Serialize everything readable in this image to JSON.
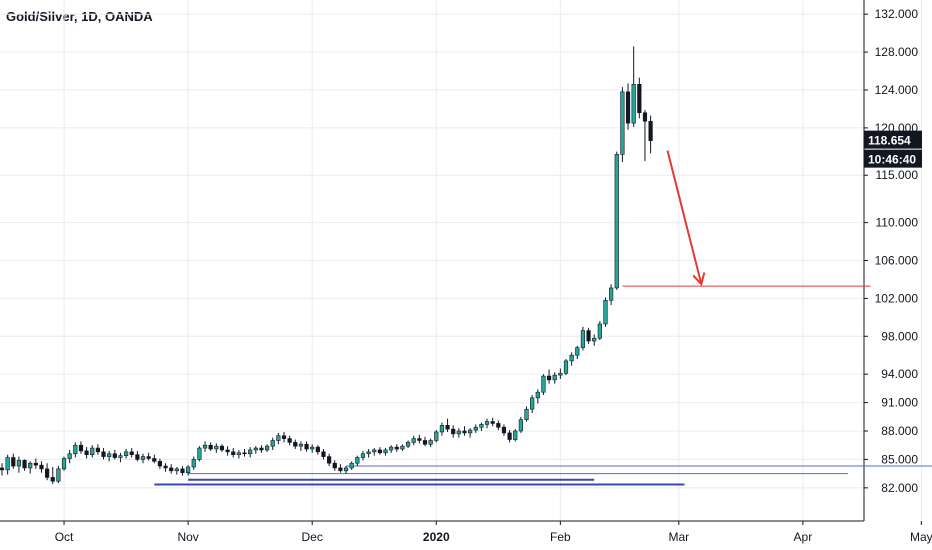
{
  "header": {
    "symbol_title": "Gold/Silver, 1D, OANDA"
  },
  "colors": {
    "up": "#26a69a",
    "down": "#131722",
    "wick": "#131722",
    "grid": "#e8ebf0",
    "axis_text": "#131722",
    "red_line": "#e53935",
    "blue_line": "#3949ab",
    "blue_line_light": "#5c6bc0",
    "price_badge_bg": "#131722",
    "price_badge_text": "#ffffff"
  },
  "chart_data": {
    "type": "candlestick",
    "title": "Gold/Silver, 1D, OANDA",
    "ylim": [
      78.5,
      133.5
    ],
    "y_ticks": [
      "132.000",
      "128.000",
      "124.000",
      "120.000",
      "115.000",
      "110.000",
      "106.000",
      "102.000",
      "98.000",
      "94.000",
      "91.000",
      "88.000",
      "85.000",
      "82.000"
    ],
    "x_ticks": [
      "Oct",
      "Nov",
      "Dec",
      "2020",
      "Feb",
      "Mar",
      "Apr",
      "May"
    ],
    "x_tick_bold": "2020",
    "last_price": "118.654",
    "countdown": "10:46:40",
    "candles": [
      [
        84.1,
        84.6,
        83.3,
        83.9
      ],
      [
        83.9,
        85.5,
        83.4,
        85.2
      ],
      [
        85.2,
        85.6,
        84.0,
        84.3
      ],
      [
        84.3,
        85.3,
        83.6,
        84.9
      ],
      [
        84.9,
        85.0,
        83.8,
        84.1
      ],
      [
        84.1,
        84.8,
        83.5,
        84.6
      ],
      [
        84.6,
        85.1,
        84.0,
        84.4
      ],
      [
        84.4,
        84.8,
        83.6,
        84.0
      ],
      [
        84.0,
        84.6,
        82.8,
        83.1
      ],
      [
        83.1,
        84.2,
        82.4,
        82.7
      ],
      [
        82.7,
        84.3,
        82.5,
        84.0
      ],
      [
        84.0,
        85.3,
        83.8,
        85.1
      ],
      [
        85.1,
        86.0,
        84.6,
        85.6
      ],
      [
        85.6,
        86.8,
        85.2,
        86.5
      ],
      [
        86.5,
        86.9,
        85.6,
        85.9
      ],
      [
        85.9,
        86.3,
        85.1,
        85.5
      ],
      [
        85.5,
        86.5,
        85.2,
        86.2
      ],
      [
        86.2,
        86.6,
        85.5,
        85.8
      ],
      [
        85.8,
        86.2,
        85.0,
        85.3
      ],
      [
        85.3,
        85.9,
        84.8,
        85.6
      ],
      [
        85.6,
        86.0,
        85.0,
        85.2
      ],
      [
        85.2,
        85.7,
        84.7,
        85.4
      ],
      [
        85.4,
        86.1,
        85.1,
        85.8
      ],
      [
        85.8,
        86.2,
        85.2,
        85.5
      ],
      [
        85.5,
        85.9,
        84.8,
        85.0
      ],
      [
        85.0,
        85.6,
        84.6,
        85.3
      ],
      [
        85.3,
        85.7,
        84.9,
        85.1
      ],
      [
        85.1,
        85.5,
        84.6,
        84.8
      ],
      [
        84.8,
        85.1,
        84.0,
        84.3
      ],
      [
        84.3,
        84.6,
        83.7,
        84.1
      ],
      [
        84.1,
        84.5,
        83.5,
        83.8
      ],
      [
        83.8,
        84.2,
        83.4,
        84.0
      ],
      [
        84.0,
        84.3,
        83.3,
        83.6
      ],
      [
        83.6,
        84.4,
        83.3,
        84.2
      ],
      [
        84.2,
        85.3,
        83.9,
        85.0
      ],
      [
        85.0,
        86.4,
        84.8,
        86.2
      ],
      [
        86.2,
        86.9,
        85.8,
        86.5
      ],
      [
        86.5,
        86.8,
        85.9,
        86.1
      ],
      [
        86.1,
        86.7,
        85.7,
        86.4
      ],
      [
        86.4,
        86.6,
        85.8,
        86.0
      ],
      [
        86.0,
        86.4,
        85.4,
        85.8
      ],
      [
        85.8,
        86.2,
        85.2,
        85.5
      ],
      [
        85.5,
        86.0,
        85.1,
        85.7
      ],
      [
        85.7,
        86.1,
        85.3,
        85.6
      ],
      [
        85.6,
        86.3,
        85.2,
        86.0
      ],
      [
        86.0,
        86.4,
        85.6,
        86.2
      ],
      [
        86.2,
        86.5,
        85.7,
        86.0
      ],
      [
        86.0,
        86.6,
        85.8,
        86.4
      ],
      [
        86.4,
        87.3,
        86.0,
        87.0
      ],
      [
        87.0,
        87.8,
        86.6,
        87.5
      ],
      [
        87.5,
        87.9,
        86.8,
        87.2
      ],
      [
        87.2,
        87.5,
        86.5,
        86.8
      ],
      [
        86.8,
        87.1,
        86.1,
        86.4
      ],
      [
        86.4,
        86.9,
        85.9,
        86.6
      ],
      [
        86.6,
        86.9,
        85.8,
        86.1
      ],
      [
        86.1,
        86.6,
        85.7,
        86.3
      ],
      [
        86.3,
        86.5,
        85.5,
        85.8
      ],
      [
        85.8,
        86.1,
        85.0,
        85.3
      ],
      [
        85.3,
        85.6,
        84.3,
        84.6
      ],
      [
        84.6,
        84.9,
        83.8,
        84.1
      ],
      [
        84.1,
        84.5,
        83.6,
        83.8
      ],
      [
        83.8,
        84.3,
        83.5,
        84.1
      ],
      [
        84.1,
        84.8,
        83.9,
        84.6
      ],
      [
        84.6,
        85.4,
        84.3,
        85.2
      ],
      [
        85.2,
        85.9,
        84.9,
        85.6
      ],
      [
        85.6,
        86.1,
        85.2,
        85.8
      ],
      [
        85.8,
        86.2,
        85.4,
        86.0
      ],
      [
        86.0,
        86.3,
        85.5,
        85.7
      ],
      [
        85.7,
        86.2,
        85.4,
        86.0
      ],
      [
        86.0,
        86.5,
        85.7,
        86.3
      ],
      [
        86.3,
        86.6,
        85.8,
        86.1
      ],
      [
        86.1,
        86.6,
        85.9,
        86.4
      ],
      [
        86.4,
        87.0,
        86.2,
        86.8
      ],
      [
        86.8,
        87.5,
        86.5,
        87.2
      ],
      [
        87.2,
        87.6,
        86.7,
        87.0
      ],
      [
        87.0,
        87.4,
        86.4,
        86.6
      ],
      [
        86.6,
        87.2,
        86.3,
        87.0
      ],
      [
        87.0,
        88.1,
        86.8,
        87.9
      ],
      [
        87.9,
        88.9,
        87.5,
        88.6
      ],
      [
        88.6,
        89.3,
        87.9,
        88.2
      ],
      [
        88.2,
        88.6,
        87.3,
        87.7
      ],
      [
        87.7,
        88.3,
        87.3,
        88.0
      ],
      [
        88.0,
        88.5,
        87.5,
        87.8
      ],
      [
        87.8,
        88.3,
        87.3,
        88.1
      ],
      [
        88.1,
        88.7,
        87.8,
        88.4
      ],
      [
        88.4,
        88.9,
        88.0,
        88.7
      ],
      [
        88.7,
        89.3,
        88.3,
        89.0
      ],
      [
        89.0,
        89.4,
        88.5,
        88.8
      ],
      [
        88.8,
        89.1,
        88.1,
        88.4
      ],
      [
        88.4,
        88.7,
        87.5,
        87.8
      ],
      [
        87.8,
        88.1,
        86.8,
        87.1
      ],
      [
        87.1,
        88.2,
        86.9,
        88.0
      ],
      [
        88.0,
        89.5,
        87.8,
        89.2
      ],
      [
        89.2,
        90.6,
        89.0,
        90.3
      ],
      [
        90.3,
        91.8,
        89.9,
        91.5
      ],
      [
        91.5,
        92.4,
        90.9,
        92.1
      ],
      [
        92.1,
        94.0,
        91.8,
        93.8
      ],
      [
        93.8,
        94.5,
        93.0,
        93.4
      ],
      [
        93.4,
        94.2,
        93.0,
        93.9
      ],
      [
        93.9,
        94.6,
        93.5,
        94.1
      ],
      [
        94.1,
        95.6,
        93.9,
        95.4
      ],
      [
        95.4,
        96.3,
        94.9,
        96.0
      ],
      [
        96.0,
        97.0,
        95.6,
        96.8
      ],
      [
        96.8,
        99.0,
        96.5,
        98.6
      ],
      [
        98.6,
        98.9,
        97.2,
        97.5
      ],
      [
        97.5,
        98.2,
        97.0,
        97.8
      ],
      [
        97.8,
        99.6,
        97.6,
        99.3
      ],
      [
        99.3,
        102.1,
        99.0,
        101.8
      ],
      [
        101.8,
        103.5,
        101.3,
        103.1
      ],
      [
        103.1,
        117.5,
        102.9,
        117.2
      ],
      [
        117.2,
        124.3,
        116.4,
        123.8
      ],
      [
        123.8,
        124.7,
        119.8,
        120.5
      ],
      [
        120.5,
        128.6,
        120.1,
        124.6
      ],
      [
        124.6,
        125.3,
        121.0,
        121.6
      ],
      [
        121.6,
        121.9,
        116.5,
        120.7
      ],
      [
        120.7,
        121.3,
        117.3,
        118.654
      ]
    ],
    "annotations": [
      {
        "kind": "hline",
        "color": "red",
        "y": 103.3,
        "from": 110,
        "to": 154
      },
      {
        "kind": "arrow",
        "color": "red",
        "x1": 118,
        "y1": 117.6,
        "x2": 124,
        "y2": 103.5
      },
      {
        "kind": "hline",
        "color": "blue_light",
        "y": 84.3,
        "from": 61,
        "to": 179
      },
      {
        "kind": "hline",
        "color": "blue_light",
        "y": 83.5,
        "from": 33,
        "to": 150
      },
      {
        "kind": "hline",
        "color": "blue",
        "y": 82.85,
        "from": 33,
        "to": 105
      },
      {
        "kind": "hline",
        "color": "blue",
        "y": 82.35,
        "from": 27,
        "to": 121
      }
    ]
  }
}
